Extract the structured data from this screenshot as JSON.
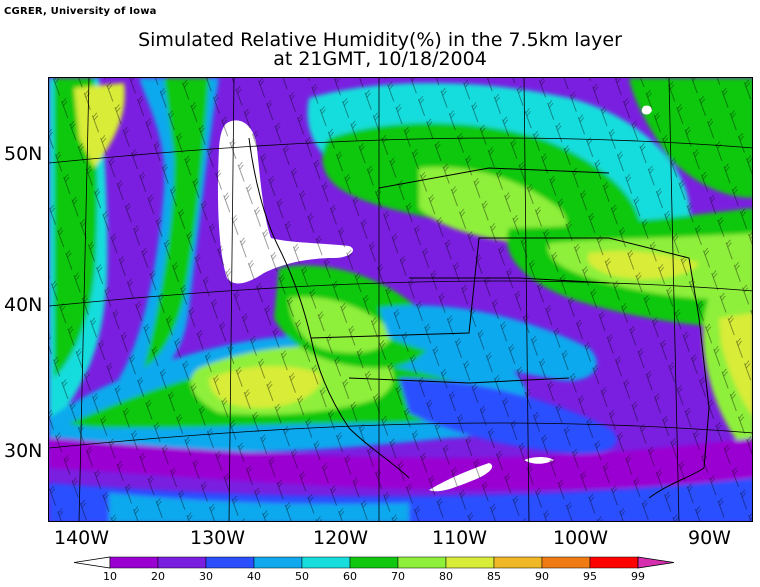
{
  "credit": "CGRER, University of Iowa",
  "title_line1": "Simulated Relative Humidity(%) in the 7.5km layer",
  "title_line2": "at 21GMT, 10/18/2004",
  "lat_labels": [
    "50N",
    "40N",
    "30N"
  ],
  "lon_labels": [
    "140W",
    "130W",
    "120W",
    "110W",
    "100W",
    "90W"
  ],
  "colorbar": {
    "ticks": [
      "10",
      "20",
      "30",
      "40",
      "50",
      "60",
      "70",
      "80",
      "85",
      "90",
      "95",
      "99"
    ],
    "colors": [
      "#ffffff",
      "#9b00d2",
      "#7a1fe0",
      "#2b4fff",
      "#11a9ee",
      "#18dddd",
      "#10c810",
      "#8ef03a",
      "#d8ec38",
      "#f0b826",
      "#f07a14",
      "#ff0000",
      "#d52fb0"
    ]
  },
  "map_legend_colors": {
    "background": "#7a1fe0",
    "purple": "#9b00d2",
    "blue": "#2b4fff",
    "light_blue": "#11a9ee",
    "cyan": "#18dddd",
    "green": "#10c810",
    "lime": "#8ef03a",
    "yellow": "#d8ec38",
    "white": "#ffffff"
  }
}
